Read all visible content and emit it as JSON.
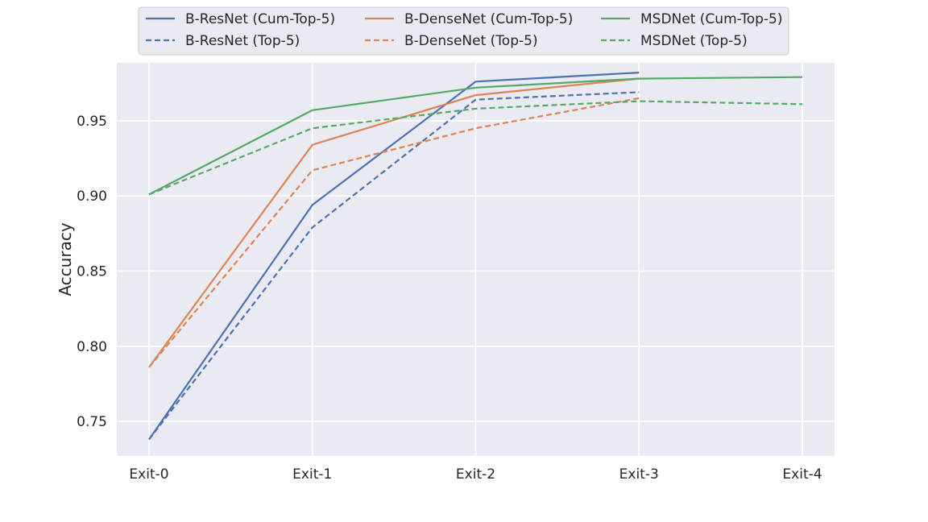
{
  "chart_data": {
    "type": "line",
    "title": "",
    "xlabel": "",
    "ylabel": "Accuracy",
    "categories": [
      "Exit-0",
      "Exit-1",
      "Exit-2",
      "Exit-3",
      "Exit-4"
    ],
    "ylim": [
      0.727,
      0.9885
    ],
    "yticks": [
      0.75,
      0.8,
      0.85,
      0.9,
      0.95
    ],
    "ytick_labels": [
      "0.75",
      "0.80",
      "0.85",
      "0.90",
      "0.95"
    ],
    "grid": true,
    "legend_position": "top-center",
    "series": [
      {
        "name": "B-ResNet (Cum-Top-5)",
        "values": [
          0.738,
          0.894,
          0.976,
          0.982,
          null
        ],
        "color": "#4c72b0",
        "dash": "solid"
      },
      {
        "name": "B-ResNet (Top-5)",
        "values": [
          0.738,
          0.879,
          0.964,
          0.969,
          null
        ],
        "color": "#4c72b0",
        "dash": "dashed"
      },
      {
        "name": "B-DenseNet (Cum-Top-5)",
        "values": [
          0.786,
          0.934,
          0.967,
          0.978,
          null
        ],
        "color": "#dd8452",
        "dash": "solid"
      },
      {
        "name": "B-DenseNet (Top-5)",
        "values": [
          0.786,
          0.917,
          0.945,
          0.965,
          null
        ],
        "color": "#dd8452",
        "dash": "dashed"
      },
      {
        "name": "MSDNet (Cum-Top-5)",
        "values": [
          0.901,
          0.957,
          0.972,
          0.978,
          0.979
        ],
        "color": "#55a868",
        "dash": "solid"
      },
      {
        "name": "MSDNet (Top-5)",
        "values": [
          0.901,
          0.945,
          0.958,
          0.963,
          0.961
        ],
        "color": "#55a868",
        "dash": "dashed"
      }
    ]
  }
}
